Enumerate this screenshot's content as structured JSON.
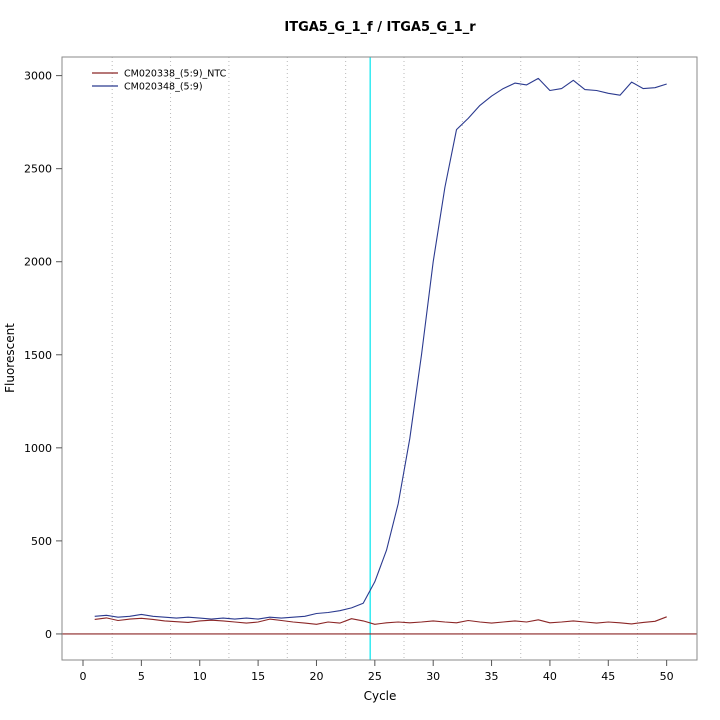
{
  "chart_data": {
    "type": "line",
    "title": "ITGA5_G_1_f / ITGA5_G_1_r",
    "xlabel": "Cycle",
    "ylabel": "Fluorescent",
    "xlim": [
      -1.8,
      52.6
    ],
    "ylim": [
      -140,
      3100
    ],
    "x_ticks": [
      0,
      5,
      10,
      15,
      20,
      25,
      30,
      35,
      40,
      45,
      50
    ],
    "y_ticks": [
      0,
      500,
      1000,
      1500,
      2000,
      2500,
      3000
    ],
    "x_gridlines": [
      2.5,
      7.5,
      12.5,
      17.5,
      22.5,
      27.5,
      32.5,
      37.5,
      42.5,
      47.5
    ],
    "grid_style": "vertical-dotted",
    "legend_position": "top-left",
    "x": [
      1,
      2,
      3,
      4,
      5,
      6,
      7,
      8,
      9,
      10,
      11,
      12,
      13,
      14,
      15,
      16,
      17,
      18,
      19,
      20,
      21,
      22,
      23,
      24,
      25,
      26,
      27,
      28,
      29,
      30,
      31,
      32,
      33,
      34,
      35,
      36,
      37,
      38,
      39,
      40,
      41,
      42,
      43,
      44,
      45,
      46,
      47,
      48,
      49,
      50
    ],
    "series": [
      {
        "name": "CM020338_(5:9)_NTC",
        "color": "#8b2626",
        "values": [
          78,
          86,
          72,
          80,
          84,
          78,
          70,
          66,
          62,
          70,
          74,
          70,
          64,
          58,
          64,
          80,
          72,
          64,
          58,
          52,
          64,
          58,
          82,
          70,
          52,
          60,
          64,
          60,
          64,
          70,
          64,
          60,
          72,
          64,
          58,
          64,
          70,
          64,
          76,
          60,
          64,
          70,
          64,
          58,
          64,
          60,
          54,
          62,
          68,
          92
        ]
      },
      {
        "name": "CM020348_(5:9)",
        "color": "#2b3a8f",
        "values": [
          95,
          100,
          90,
          95,
          105,
          95,
          90,
          85,
          90,
          85,
          80,
          85,
          80,
          85,
          80,
          90,
          85,
          90,
          95,
          110,
          115,
          125,
          140,
          165,
          280,
          450,
          700,
          1050,
          1500,
          2000,
          2400,
          2710,
          2770,
          2840,
          2890,
          2930,
          2960,
          2950,
          2985,
          2920,
          2930,
          2975,
          2925,
          2920,
          2905,
          2895,
          2965,
          2930,
          2935,
          2955
        ]
      }
    ],
    "threshold_vline": {
      "x": 24.6,
      "color": "#00e5ee"
    },
    "baseline_hline": {
      "y": 0,
      "color": "#8b2626"
    }
  }
}
